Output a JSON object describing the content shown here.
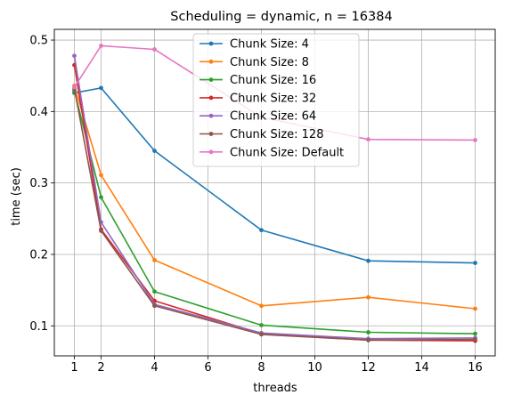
{
  "chart_data": {
    "type": "line",
    "title": "Scheduling = dynamic, n = 16384",
    "xlabel": "threads",
    "ylabel": "time (sec)",
    "xlim": [
      0.25,
      16.75
    ],
    "ylim": [
      0.058,
      0.515
    ],
    "xticks": [
      1,
      2,
      4,
      6,
      8,
      10,
      12,
      14,
      16
    ],
    "yticks": [
      0.1,
      0.2,
      0.3,
      0.4,
      0.5
    ],
    "ytick_labels": [
      "0.1",
      "0.2",
      "0.3",
      "0.4",
      "0.5"
    ],
    "grid": true,
    "legend_position": "top-center",
    "x": [
      1,
      2,
      4,
      8,
      12,
      16
    ],
    "series": [
      {
        "name": "Chunk Size: 4",
        "color": "#1f77b4",
        "values": [
          0.426,
          0.433,
          0.345,
          0.234,
          0.191,
          0.188
        ]
      },
      {
        "name": "Chunk Size: 8",
        "color": "#ff7f0e",
        "values": [
          0.436,
          0.311,
          0.192,
          0.128,
          0.14,
          0.124
        ]
      },
      {
        "name": "Chunk Size: 16",
        "color": "#2ca02c",
        "values": [
          0.429,
          0.28,
          0.148,
          0.101,
          0.091,
          0.089
        ]
      },
      {
        "name": "Chunk Size: 32",
        "color": "#d62728",
        "values": [
          0.465,
          0.235,
          0.135,
          0.089,
          0.08,
          0.079
        ]
      },
      {
        "name": "Chunk Size: 64",
        "color": "#9467bd",
        "values": [
          0.478,
          0.245,
          0.13,
          0.09,
          0.082,
          0.083
        ]
      },
      {
        "name": "Chunk Size: 128",
        "color": "#8c564b",
        "values": [
          0.432,
          0.233,
          0.128,
          0.088,
          0.08,
          0.081
        ]
      },
      {
        "name": "Chunk Size: Default",
        "color": "#e377c2",
        "values": [
          0.434,
          0.492,
          0.487,
          0.392,
          0.361,
          0.36
        ]
      }
    ]
  }
}
